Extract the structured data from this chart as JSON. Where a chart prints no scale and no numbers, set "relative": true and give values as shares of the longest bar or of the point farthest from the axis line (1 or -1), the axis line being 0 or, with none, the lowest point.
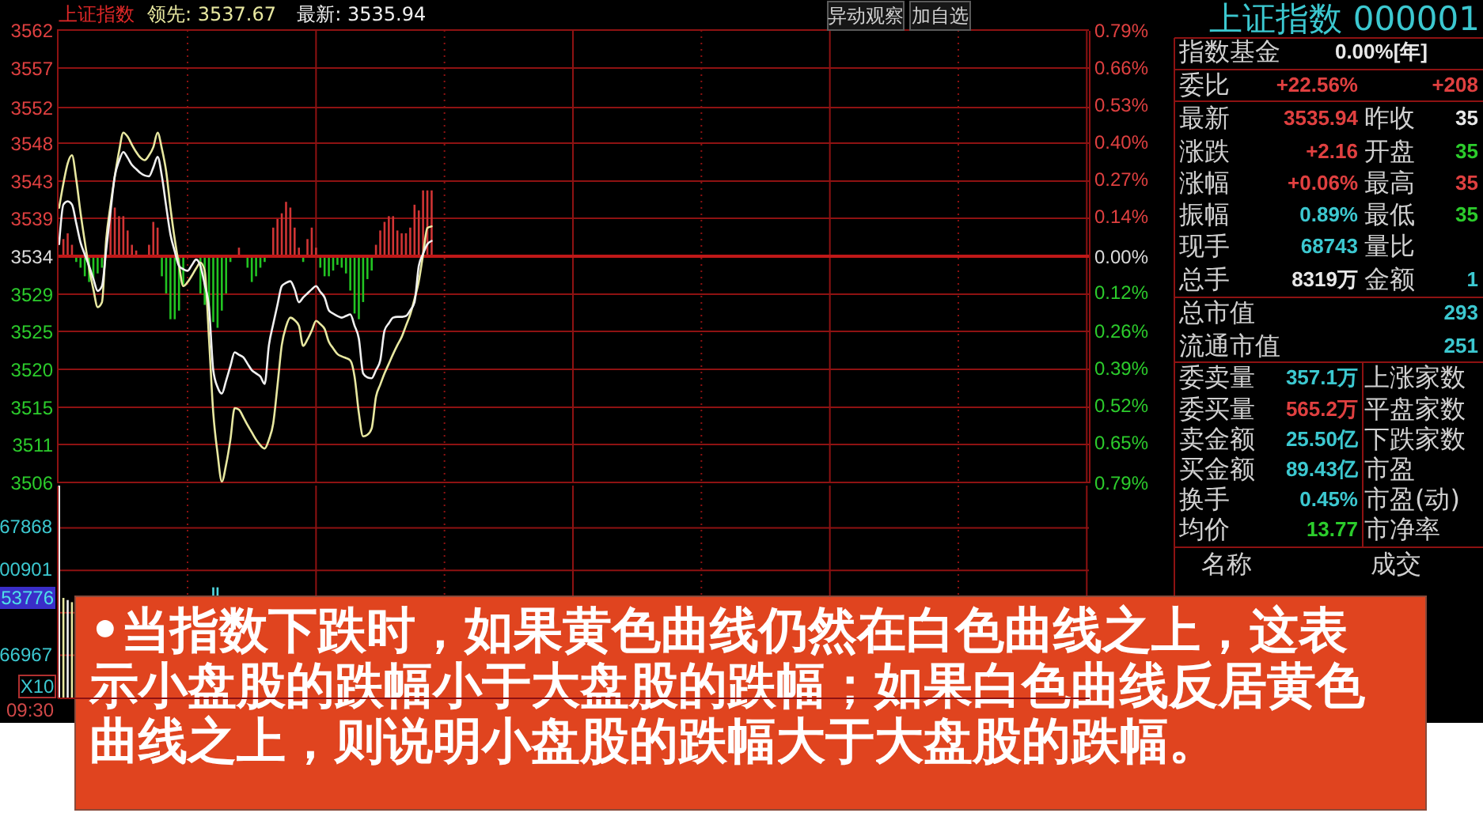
{
  "chart_data": [
    {
      "type": "line",
      "title": "上证指数",
      "legend": "top left",
      "grid": true,
      "categories": [
        null,
        null,
        null,
        null,
        null,
        null,
        null,
        null,
        null,
        null,
        null,
        null,
        null,
        null,
        null,
        null,
        null,
        null,
        null,
        null,
        null,
        null,
        null,
        null,
        null,
        null,
        null,
        null,
        null,
        null,
        null,
        null,
        null,
        null,
        null,
        null,
        null,
        null,
        null,
        null,
        null,
        null,
        null,
        null,
        null,
        null,
        null,
        null,
        null,
        null,
        null,
        null,
        null,
        null,
        null,
        null,
        null,
        null,
        null,
        null,
        null,
        null,
        null,
        null,
        null,
        null,
        null,
        null,
        null,
        null,
        null,
        null,
        null,
        null,
        null,
        null,
        null,
        null,
        null,
        null,
        null,
        null,
        null,
        null,
        null,
        null,
        null,
        null,
        null,
        null,
        null,
        null,
        null,
        null,
        null,
        null,
        null,
        null,
        null,
        null,
        null,
        null,
        null,
        null,
        null,
        null,
        null,
        null,
        null,
        null,
        null,
        null,
        null,
        null,
        null,
        null,
        null,
        null,
        null,
        null,
        null,
        null,
        null,
        null,
        null,
        null,
        null,
        null,
        null,
        null,
        null,
        null,
        null,
        null,
        null,
        null,
        null,
        null,
        null,
        null,
        null,
        null,
        null,
        null,
        null,
        null,
        null,
        null,
        null,
        null,
        null,
        null,
        null,
        null,
        null,
        null,
        null,
        null,
        null,
        null,
        null,
        null,
        null,
        null,
        null,
        null,
        null,
        null,
        null,
        null,
        null,
        null,
        null,
        null,
        null,
        null,
        null,
        null,
        null,
        null,
        null,
        null,
        null,
        null,
        null,
        null,
        null,
        null,
        null,
        null,
        null,
        null,
        null,
        null,
        null,
        null,
        null,
        null,
        null,
        null,
        null,
        null,
        null,
        null,
        null,
        null,
        null,
        null,
        null,
        null,
        null,
        null,
        null,
        null,
        null,
        null,
        null,
        null,
        null,
        null,
        null,
        null,
        null,
        null,
        null,
        null,
        null,
        null,
        null,
        null,
        null,
        null,
        null,
        null,
        null,
        null,
        null,
        null,
        null,
        null,
        null
      ],
      "ylim": [
        3506,
        3562
      ],
      "yticks": [
        3506,
        {
          "value": 3510.7,
          "label": "3511"
        },
        {
          "value": 3515.3,
          "label": "3515"
        },
        3520,
        {
          "value": 3524.7,
          "label": "3525"
        },
        {
          "value": 3529.3,
          "label": "3529"
        },
        3534,
        {
          "value": 3538.7,
          "label": "3539"
        },
        {
          "value": 3543.3,
          "label": "3543"
        },
        3548,
        {
          "value": 3552.4,
          "label": "3552"
        },
        {
          "value": 3557.3,
          "label": "3557"
        },
        3562
      ],
      "y2lim": [
        -0.79,
        0.79
      ],
      "y2ticks": [
        {
          "value": -0.79,
          "label": "0.79%"
        },
        {
          "value": -0.65,
          "label": "0.65%"
        },
        {
          "value": -0.52,
          "label": "0.52%"
        },
        {
          "value": -0.39,
          "label": "0.39%"
        },
        {
          "value": -0.26,
          "label": "0.26%"
        },
        {
          "value": -0.125,
          "label": "0.12%"
        },
        {
          "value": 0,
          "label": "0.00%"
        },
        {
          "value": 0.14,
          "label": "0.14%"
        },
        {
          "value": 0.27,
          "label": "0.27%"
        },
        {
          "value": 0.4,
          "label": "0.40%"
        },
        {
          "value": 0.53,
          "label": "0.53%"
        },
        {
          "value": 0.66,
          "label": "0.66%"
        },
        {
          "value": 0.79,
          "label": "0.79%"
        }
      ],
      "ref_lines": [
        {
          "axis": "y2",
          "value": 0,
          "color": "#c01818"
        }
      ],
      "series": [
        {
          "name": "领先: 3537.67",
          "color": "#e8e8a0",
          "values": [
            3540.0,
            3543.0,
            3545.5,
            3546.5,
            3543.5,
            3539.4,
            3535.8,
            3532.5,
            3529.9,
            3527.7,
            3528.3,
            3536.1,
            3540.3,
            3543.9,
            3547.0,
            3549.3,
            3548.8,
            3547.8,
            3546.9,
            3546.2,
            3545.9,
            3546.5,
            3547.5,
            3549.3,
            3547.3,
            3544.5,
            3540.0,
            3536.1,
            3532.9,
            3530.3,
            3530.8,
            3531.6,
            3532.5,
            3533.2,
            3532.2,
            3523.8,
            3514.6,
            3509.6,
            3506.1,
            3508.2,
            3511.3,
            3515.2,
            3515.0,
            3514.1,
            3513.1,
            3512.2,
            3511.3,
            3510.6,
            3510.2,
            3511.3,
            3513.3,
            3518.0,
            3523.0,
            3525.3,
            3526.4,
            3526.1,
            3525.4,
            3522.9,
            3523.7,
            3524.8,
            3526.0,
            3525.6,
            3525.0,
            3523.4,
            3522.6,
            3521.9,
            3521.6,
            3521.4,
            3521.1,
            3519.1,
            3514.6,
            3511.7,
            3511.9,
            3512.7,
            3516.6,
            3518.1,
            3519.5,
            3520.7,
            3521.9,
            3523.0,
            3524.0,
            3525.4,
            3526.8,
            3528.7,
            3530.9,
            3534.2,
            3537.5,
            3537.7,
            null,
            null,
            null,
            null,
            null,
            null,
            null,
            null,
            null,
            null,
            null,
            null,
            null,
            null,
            null,
            null,
            null,
            null,
            null,
            null,
            null,
            null,
            null,
            null,
            null,
            null,
            null,
            null,
            null,
            null,
            null,
            null,
            null,
            null,
            null,
            null,
            null,
            null,
            null,
            null,
            null,
            null,
            null,
            null,
            null,
            null,
            null,
            null,
            null,
            null,
            null,
            null,
            null,
            null,
            null,
            null,
            null,
            null,
            null,
            null,
            null,
            null,
            null,
            null,
            null,
            null,
            null,
            null,
            null,
            null,
            null,
            null,
            null,
            null,
            null,
            null,
            null,
            null,
            null,
            null,
            null,
            null,
            null,
            null,
            null,
            null,
            null,
            null,
            null,
            null,
            null,
            null,
            null,
            null,
            null,
            null,
            null,
            null,
            null,
            null,
            null,
            null,
            null,
            null,
            null,
            null,
            null,
            null,
            null,
            null,
            null,
            null,
            null,
            null,
            null,
            null,
            null,
            null,
            null,
            null,
            null,
            null,
            null,
            null,
            null,
            null,
            null,
            null,
            null,
            null,
            null,
            null,
            null,
            null,
            null,
            null,
            null,
            null,
            null,
            null,
            null,
            null,
            null,
            null,
            null,
            null,
            null,
            null,
            null,
            null,
            null,
            null,
            null
          ]
        },
        {
          "name": "最新: 3535.94",
          "color": "#f0f0f0",
          "values": [
            3535.5,
            3540.4,
            3540.8,
            3540.4,
            3538.1,
            3535.7,
            3534.2,
            3532.8,
            3531.2,
            3529.7,
            3530.3,
            3534.8,
            3539.5,
            3543.9,
            3545.8,
            3546.9,
            3546.2,
            3545.3,
            3544.8,
            3544.3,
            3544.0,
            3543.9,
            3545.0,
            3546.3,
            3543.9,
            3540.2,
            3536.7,
            3534.6,
            3532.8,
            3532.4,
            3532.2,
            3532.9,
            3533.6,
            3532.8,
            3530.5,
            3527.7,
            3519.9,
            3517.8,
            3517.0,
            3518.6,
            3520.4,
            3522.1,
            3521.8,
            3521.5,
            3520.7,
            3519.9,
            3519.5,
            3519.1,
            3518.2,
            3523.0,
            3525.6,
            3528.0,
            3530.3,
            3530.7,
            3530.9,
            3529.9,
            3528.3,
            3528.9,
            3529.4,
            3529.9,
            3530.3,
            3529.6,
            3528.9,
            3527.3,
            3526.9,
            3526.6,
            3526.4,
            3526.6,
            3526.8,
            3525.4,
            3523.8,
            3519.5,
            3519.0,
            3518.9,
            3519.9,
            3521.1,
            3524.8,
            3525.7,
            3526.4,
            3526.5,
            3526.5,
            3526.6,
            3527.3,
            3528.3,
            3532.8,
            3534.3,
            3535.5,
            3535.9,
            null,
            null,
            null,
            null,
            null,
            null,
            null,
            null,
            null,
            null,
            null,
            null,
            null,
            null,
            null,
            null,
            null,
            null,
            null,
            null,
            null,
            null,
            null,
            null,
            null,
            null,
            null,
            null,
            null,
            null,
            null,
            null,
            null,
            null,
            null,
            null,
            null,
            null,
            null,
            null,
            null,
            null,
            null,
            null,
            null,
            null,
            null,
            null,
            null,
            null,
            null,
            null,
            null,
            null,
            null,
            null,
            null,
            null,
            null,
            null,
            null,
            null,
            null,
            null,
            null,
            null,
            null,
            null,
            null,
            null,
            null,
            null,
            null,
            null,
            null,
            null,
            null,
            null,
            null,
            null,
            null,
            null,
            null,
            null,
            null,
            null,
            null,
            null,
            null,
            null,
            null,
            null,
            null,
            null,
            null,
            null,
            null,
            null,
            null,
            null,
            null,
            null,
            null,
            null,
            null,
            null,
            null,
            null,
            null,
            null,
            null,
            null,
            null,
            null,
            null,
            null,
            null,
            null,
            null,
            null,
            null,
            null,
            null,
            null,
            null,
            null,
            null,
            null,
            null,
            null,
            null,
            null,
            null,
            null,
            null,
            null,
            null,
            null,
            null,
            null,
            null,
            null,
            null,
            null,
            null,
            null,
            null,
            null,
            null,
            null,
            null,
            null,
            null
          ]
        },
        {
          "type": "bar",
          "axis": "y2",
          "color": "#d03434",
          "values": [
            null,
            0.06,
            0.08,
            0.04,
            null,
            null,
            null,
            null,
            null,
            null,
            null,
            null,
            0.16,
            0.17,
            0.14,
            0.14,
            0.09,
            0.04,
            0.02,
            null,
            null,
            0.04,
            0.12,
            0.1,
            null,
            null,
            null,
            null,
            null,
            null,
            null,
            null,
            null,
            null,
            null,
            null,
            null,
            null,
            null,
            null,
            null,
            null,
            0.03,
            null,
            null,
            null,
            null,
            null,
            null,
            null,
            0.1,
            0.13,
            0.15,
            0.19,
            0.17,
            0.1,
            0.03,
            null,
            0.06,
            0.1,
            0.03,
            null,
            null,
            null,
            null,
            null,
            null,
            null,
            null,
            null,
            null,
            null,
            null,
            null,
            0.04,
            0.09,
            0.12,
            0.14,
            0.14,
            0.09,
            0.08,
            0.08,
            0.1,
            0.18,
            0.16,
            0.23,
            0.23,
            0.23,
            null,
            null,
            null,
            null,
            null,
            null,
            null,
            null,
            null,
            null,
            null,
            null,
            null,
            null,
            null,
            null,
            null,
            null,
            null,
            null,
            null,
            null,
            null,
            null,
            null,
            null,
            null,
            null,
            null,
            null,
            null,
            null,
            null,
            null,
            null,
            null,
            null,
            null,
            null,
            null,
            null,
            null,
            null,
            null,
            null,
            null,
            null,
            null,
            null,
            null,
            null,
            null,
            null,
            null,
            null,
            null,
            null,
            null,
            null,
            null,
            null,
            null,
            null,
            null,
            null,
            null,
            null,
            null,
            null,
            null,
            null,
            null,
            null,
            null,
            null,
            null,
            null,
            null,
            null,
            null,
            null,
            null,
            null,
            null,
            null,
            null,
            null,
            null,
            null,
            null,
            null,
            null,
            null,
            null,
            null,
            null,
            null,
            null,
            null,
            null,
            null,
            null,
            null,
            null,
            null,
            null,
            null,
            null,
            null,
            null,
            null,
            null,
            null,
            null,
            null,
            null,
            null,
            null,
            null,
            null,
            null,
            null,
            null,
            null,
            null,
            null,
            null,
            null,
            null,
            null,
            null,
            null,
            null,
            null,
            null,
            null,
            null,
            null,
            null,
            null,
            null,
            null,
            null,
            null,
            null,
            null,
            null,
            null,
            null,
            null,
            null,
            null,
            null
          ]
        },
        {
          "type": "bar",
          "axis": "y2",
          "color": "#22c422",
          "values": [
            null,
            null,
            null,
            null,
            -0.02,
            -0.04,
            -0.07,
            -0.09,
            -0.08,
            -0.06,
            -0.04,
            null,
            null,
            null,
            null,
            null,
            null,
            null,
            null,
            null,
            null,
            null,
            null,
            null,
            -0.07,
            -0.13,
            -0.22,
            -0.22,
            -0.19,
            -0.1,
            null,
            null,
            null,
            -0.13,
            -0.17,
            -0.19,
            -0.23,
            -0.25,
            -0.19,
            -0.13,
            -0.02,
            null,
            null,
            null,
            -0.04,
            -0.09,
            -0.07,
            -0.04,
            -0.02,
            null,
            null,
            null,
            null,
            null,
            null,
            null,
            null,
            -0.02,
            null,
            null,
            null,
            -0.04,
            -0.07,
            -0.07,
            -0.05,
            -0.03,
            -0.04,
            -0.06,
            -0.12,
            -0.2,
            -0.22,
            -0.16,
            -0.08,
            -0.05,
            null,
            null,
            null,
            null,
            null,
            null,
            null,
            null,
            null,
            null,
            null,
            null,
            null,
            null,
            null,
            null,
            null,
            null,
            null,
            null,
            null,
            null,
            null,
            null,
            null,
            null,
            null,
            null,
            null,
            null,
            null,
            null,
            null,
            null,
            null,
            null,
            null,
            null,
            null,
            null,
            null,
            null,
            null,
            null,
            null,
            null,
            null,
            null,
            null,
            null,
            null,
            null,
            null,
            null,
            null,
            null,
            null,
            null,
            null,
            null,
            null,
            null,
            null,
            null,
            null,
            null,
            null,
            null,
            null,
            null,
            null,
            null,
            null,
            null,
            null,
            null,
            null,
            null,
            null,
            null,
            null,
            null,
            null,
            null,
            null,
            null,
            null,
            null,
            null,
            null,
            null,
            null,
            null,
            null,
            null,
            null,
            null,
            null,
            null,
            null,
            null,
            null,
            null,
            null,
            null,
            null,
            null,
            null,
            null,
            null,
            null,
            null,
            null,
            null,
            null,
            null,
            null,
            null,
            null,
            null,
            null,
            null,
            null,
            null,
            null,
            null,
            null,
            null,
            null,
            null,
            null,
            null,
            null,
            null,
            null,
            null,
            null,
            null,
            null,
            null,
            null,
            null,
            null,
            null,
            null,
            null,
            null,
            null,
            null,
            null,
            null,
            null,
            null,
            null,
            null,
            null,
            null,
            null,
            null,
            null,
            null,
            null,
            null,
            null,
            null,
            null,
            null
          ]
        }
      ],
      "annotations": [
        "异动观察",
        "加自选",
        "•当指数下跌时，如果黄色曲线仍然在白色曲线之上，这表示小盘股的跌幅小于大盘股的跌幅；如果白色曲线反居黄色曲线之上，则说明小盘股的跌幅大于大盘股的跌幅。"
      ]
    },
    {
      "type": "bar",
      "relative": true,
      "grid": "x",
      "categories": [
        null,
        null,
        null,
        null,
        null,
        null,
        null,
        null,
        null,
        null,
        null,
        null,
        null,
        null,
        null,
        null,
        null,
        null,
        null,
        null,
        null,
        null,
        null,
        null,
        null,
        null,
        null,
        null,
        null,
        null,
        null,
        null,
        null,
        null,
        null,
        null,
        null,
        null,
        null,
        null,
        null,
        null,
        null,
        null,
        null,
        null,
        null,
        null,
        null,
        null,
        null,
        null,
        null,
        null,
        null,
        null,
        null,
        null,
        null,
        null,
        null,
        null,
        null,
        null,
        null,
        null,
        null,
        null,
        null,
        null,
        null,
        null,
        null,
        null,
        null,
        null,
        null,
        null,
        null,
        null,
        null,
        null,
        null,
        null,
        null,
        null,
        null,
        null,
        null,
        null,
        null,
        null,
        null,
        null,
        null,
        null,
        null,
        null,
        null,
        null,
        null,
        null,
        null,
        null,
        null,
        null,
        null,
        null,
        null,
        null,
        null,
        null,
        null,
        null,
        null,
        null,
        null,
        null,
        null,
        null,
        null,
        null,
        null,
        null,
        null,
        null,
        null,
        null,
        null,
        null,
        null,
        null,
        null,
        null,
        null,
        null,
        null,
        null,
        null,
        null,
        null,
        null,
        null,
        null,
        null,
        null,
        null,
        null,
        null,
        null,
        null,
        null,
        null,
        null,
        null,
        null,
        null,
        null,
        null,
        null,
        null,
        null,
        null,
        null,
        null,
        null,
        null,
        null,
        null,
        null,
        null,
        null,
        null,
        null,
        null,
        null,
        null,
        null,
        null,
        null,
        null,
        null,
        null,
        null,
        null,
        null,
        null,
        null,
        null,
        null,
        null,
        null,
        null,
        null,
        null,
        null,
        null,
        null,
        null,
        null,
        null,
        null,
        null,
        null,
        null,
        null,
        null,
        null,
        null,
        null,
        null,
        null,
        null,
        null,
        null,
        null,
        null,
        null,
        null,
        null,
        null,
        null,
        null,
        null,
        null,
        null,
        null,
        null,
        null,
        null,
        null,
        null,
        null,
        null,
        null,
        null,
        null,
        null,
        null,
        null,
        null
      ],
      "values": [
        1,
        0.47,
        0.46,
        0.45,
        null,
        null,
        null,
        null,
        null,
        null,
        null,
        null,
        null,
        null,
        null,
        null,
        null,
        null,
        null,
        null,
        null,
        null,
        null,
        null,
        null,
        null,
        null,
        null,
        null,
        null,
        null,
        null,
        null,
        null,
        null,
        null,
        0.52,
        0.52,
        null,
        null,
        null,
        null,
        null,
        null,
        null,
        null,
        null,
        null,
        null,
        null,
        null,
        null,
        null,
        null,
        null,
        null,
        null,
        null,
        null,
        null,
        null,
        null,
        null,
        null,
        null,
        null,
        null,
        null,
        null,
        null,
        null,
        null,
        null,
        null,
        null,
        null,
        null,
        null,
        null,
        null,
        null,
        null,
        null,
        null,
        null,
        null,
        null,
        null,
        null,
        null,
        null,
        null,
        null,
        null,
        null,
        null,
        null,
        null,
        null,
        null,
        null,
        null,
        null,
        null,
        null,
        null,
        null,
        null,
        null,
        null,
        null,
        null,
        null,
        null,
        null,
        null,
        null,
        null,
        null,
        null,
        null,
        null,
        null,
        null,
        null,
        null,
        null,
        null,
        null,
        null,
        null,
        null,
        null,
        null,
        null,
        null,
        null,
        null,
        null,
        null,
        null,
        null,
        null,
        null,
        null,
        null,
        null,
        null,
        null,
        null,
        null,
        null,
        null,
        null,
        null,
        null,
        null,
        null,
        null,
        null,
        null,
        null,
        null,
        null,
        null,
        null,
        null,
        null,
        null,
        null,
        null,
        null,
        null,
        null,
        null,
        null,
        null,
        null,
        null,
        null,
        null,
        null,
        null,
        null,
        null,
        null,
        null,
        null,
        null,
        null,
        null,
        null,
        null,
        null,
        null,
        null,
        null,
        null,
        null,
        null,
        null,
        null,
        null,
        null,
        null,
        null,
        null,
        null,
        null,
        null,
        null,
        null,
        null,
        null,
        null,
        null,
        null,
        null,
        null,
        null,
        null,
        null,
        null,
        null,
        null,
        null,
        null,
        null,
        null,
        null,
        null,
        null,
        null,
        null,
        null,
        null,
        null,
        null,
        null,
        null,
        null
      ],
      "colors": [
        "#f0f0f0",
        "#e8e8a0",
        "#f0f0f0",
        "#e8e8a0",
        null,
        null,
        null,
        null,
        null,
        null,
        null,
        null,
        null,
        null,
        null,
        null,
        null,
        null,
        null,
        null,
        null,
        null,
        null,
        null,
        null,
        null,
        null,
        null,
        null,
        null,
        null,
        null,
        null,
        null,
        null,
        null,
        "#50d8e0",
        "#50d8e0",
        null,
        null,
        null,
        null,
        null,
        null,
        null,
        null,
        null,
        null,
        null,
        null,
        null,
        null,
        null,
        null,
        null,
        null,
        null,
        null,
        null,
        null,
        null,
        null,
        null,
        null,
        null,
        null,
        null,
        null,
        null,
        null,
        null,
        null,
        null,
        null,
        null,
        null,
        null,
        null,
        null,
        null,
        null,
        null,
        null,
        null,
        null,
        null,
        null,
        null,
        null,
        null,
        null,
        null,
        null,
        null,
        null,
        null,
        null,
        null,
        null,
        null,
        null,
        null,
        null,
        null,
        null,
        null,
        null,
        null,
        null,
        null,
        null,
        null,
        null,
        null,
        null,
        null,
        null,
        null,
        null,
        null,
        null,
        null,
        null,
        null,
        null,
        null,
        null,
        null,
        null,
        null,
        null,
        null,
        null,
        null,
        null,
        null,
        null,
        null,
        null,
        null,
        null,
        null,
        null,
        null,
        null,
        null,
        null,
        null,
        null,
        null,
        null,
        null,
        null,
        null,
        null,
        null,
        null,
        null,
        null,
        null,
        null,
        null,
        null,
        null,
        null,
        null,
        null,
        null,
        null,
        null,
        null,
        null,
        null,
        null,
        null,
        null,
        null,
        null,
        null,
        null,
        null,
        null,
        null,
        null,
        null,
        null,
        null,
        null,
        null,
        null,
        null,
        null,
        null,
        null,
        null,
        null,
        null,
        null,
        null,
        null,
        null,
        null,
        null,
        null,
        null,
        null,
        null,
        null,
        null,
        null,
        null,
        null,
        null,
        null,
        null,
        null,
        null,
        null,
        null,
        null,
        null,
        null,
        null,
        null,
        null,
        null,
        null,
        null,
        null,
        null,
        null,
        null,
        null,
        null,
        null,
        null,
        null,
        null,
        null,
        null,
        null
      ],
      "ref_lines": [
        {
          "axis": "y",
          "value": 0.2
        },
        {
          "axis": "y",
          "value": 0.4
        },
        {
          "axis": "y",
          "value": 0.6
        },
        {
          "axis": "y",
          "value": 0.8
        }
      ],
      "annotations": [
        "67868",
        "00901",
        "66967",
        "53776",
        "X10",
        "09:30"
      ]
    },
    {
      "type": "other",
      "title": "上证指数 000001",
      "categories": [
        "指数基金",
        "委比",
        null,
        "最新",
        "昨收",
        "涨跌",
        "开盘",
        "涨幅",
        "最高",
        "振幅",
        "最低",
        "现手",
        "量比",
        "总手",
        "金额",
        "总市值",
        "流通市值",
        "委卖量",
        "上涨家数",
        "委买量",
        "平盘家数",
        "卖金额",
        "下跌家数",
        "买金额",
        "市盈",
        "换手",
        "市盈(动)",
        "均价",
        "市净率",
        "名称",
        "成交"
      ],
      "value_labels": [
        "0.00%[年]",
        "+22.56%",
        "+208",
        "3535.94",
        "35",
        "+2.16",
        "35",
        "+0.06%",
        "35",
        "0.89%",
        "35",
        "68743",
        null,
        "8319万",
        "1",
        "293",
        "251",
        "357.1万",
        null,
        "565.2万",
        null,
        "25.50亿",
        null,
        "89.43亿",
        null,
        "0.45%",
        null,
        "13.77",
        null,
        null,
        null
      ],
      "colors": [
        "#e8e8e8",
        "#e04040",
        "#e04040",
        "#e04040",
        "#e8e8e8",
        "#e04040",
        "#2ccc2c",
        "#e04040",
        "#e04040",
        "#3cc8d0",
        "#2ccc2c",
        "#3cc8d0",
        null,
        "#e8e8e8",
        "#3cc8d0",
        "#3cc8d0",
        "#3cc8d0",
        "#3cc8d0",
        null,
        "#e04040",
        null,
        "#3cc8d0",
        null,
        "#3cc8d0",
        null,
        "#3cc8d0",
        null,
        "#2ccc2c",
        null,
        null,
        null
      ]
    }
  ]
}
